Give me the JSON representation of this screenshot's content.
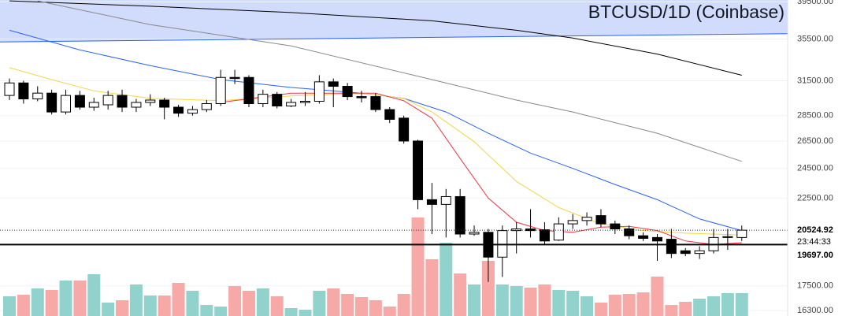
{
  "chart_data": {
    "type": "candlestick",
    "title": "BTCUSD/1D (Coinbase)",
    "log_scale": true,
    "grid": true,
    "ylim": [
      16050,
      39700
    ],
    "yticks": [
      {
        "value": 39500,
        "label": "39500.00"
      },
      {
        "value": 35500,
        "label": "35500.00"
      },
      {
        "value": 31500,
        "label": "31500.00"
      },
      {
        "value": 28500,
        "label": "28500.00"
      },
      {
        "value": 26500,
        "label": "26500.00"
      },
      {
        "value": 24500,
        "label": "24500.00"
      },
      {
        "value": 22500,
        "label": "22500.00"
      },
      {
        "value": 17500,
        "label": "17500.00"
      },
      {
        "value": 16300,
        "label": "16300.00"
      }
    ],
    "up_color": "#ffffff",
    "down_color": "#000000",
    "volume_up_color": "#92d2cc",
    "volume_down_color": "#f7a9a7",
    "open": [
      30200,
      31300,
      29900,
      30400,
      28800,
      30200,
      29200,
      29400,
      30200,
      29200,
      29600,
      29800,
      29200,
      28700,
      29000,
      29500,
      31800,
      31800,
      29500,
      30300,
      29300,
      29600,
      29700,
      31400,
      31000,
      30100,
      30100,
      29000,
      28300,
      26500,
      22400,
      22100,
      22600,
      20300,
      20400,
      19000,
      20500,
      20600,
      20550,
      19950,
      20900,
      21100,
      21400,
      20900,
      20600,
      20200,
      20100,
      20000,
      19350,
      19200,
      19350,
      20100,
      20100
    ],
    "high": [
      31700,
      31500,
      31000,
      30700,
      30700,
      30600,
      30000,
      30600,
      30700,
      29900,
      30300,
      30000,
      29400,
      29300,
      29800,
      32500,
      32500,
      32000,
      30700,
      30500,
      29900,
      30500,
      32000,
      31700,
      31300,
      30600,
      30400,
      29200,
      28500,
      26600,
      23500,
      23100,
      23100,
      20800,
      20600,
      20800,
      21000,
      21800,
      21000,
      21300,
      21500,
      21600,
      21800,
      21100,
      20800,
      20400,
      20300,
      20600,
      19500,
      19600,
      20600,
      20600,
      20800
    ],
    "low": [
      29800,
      29500,
      29700,
      28600,
      28600,
      29000,
      28900,
      29000,
      28800,
      28800,
      29300,
      28200,
      28400,
      28500,
      28800,
      29300,
      31200,
      29200,
      29200,
      29100,
      29200,
      29300,
      29500,
      29200,
      29800,
      29600,
      28800,
      27900,
      26300,
      21800,
      20300,
      20100,
      20100,
      20200,
      17700,
      17950,
      19200,
      20100,
      19700,
      19900,
      20600,
      20800,
      20700,
      20300,
      20000,
      19900,
      18800,
      18950,
      19050,
      18900,
      19200,
      19400,
      19900
    ],
    "close": [
      31300,
      29900,
      30400,
      28800,
      30200,
      29200,
      29600,
      30200,
      29200,
      29600,
      29800,
      29200,
      28700,
      29000,
      29500,
      31800,
      31700,
      29500,
      30300,
      29300,
      29600,
      29700,
      31400,
      31000,
      30100,
      30000,
      29000,
      28200,
      26500,
      22400,
      22100,
      22600,
      20300,
      20400,
      19000,
      20500,
      20600,
      20500,
      19900,
      20900,
      21100,
      21300,
      20900,
      20600,
      20200,
      20050,
      19900,
      19200,
      19200,
      19350,
      20100,
      20150,
      20524.92
    ],
    "volume": [
      25,
      27,
      35,
      33,
      45,
      45,
      53,
      17,
      20,
      40,
      26,
      26,
      42,
      32,
      14,
      12,
      38,
      32,
      35,
      25,
      10,
      8,
      32,
      35,
      28,
      24,
      20,
      12,
      28,
      125,
      72,
      93,
      54,
      40,
      70,
      40,
      38,
      36,
      40,
      33,
      32,
      25,
      17,
      27,
      28,
      30,
      50,
      14,
      18,
      22,
      25,
      29,
      29
    ],
    "moving_averages": [
      {
        "color": "#000000",
        "x": [
          0,
          10,
          20,
          30,
          36,
          40,
          46,
          52
        ],
        "values": [
          39600,
          39000,
          38300,
          37400,
          36400,
          35600,
          34000,
          32000
        ]
      },
      {
        "color": "#888888",
        "x": [
          2,
          10,
          20,
          30,
          36,
          40,
          46,
          52
        ],
        "values": [
          39600,
          37000,
          34800,
          31600,
          29800,
          28800,
          27100,
          25000
        ]
      },
      {
        "color": "#2962ff",
        "x": [
          0,
          5,
          10,
          15,
          20,
          25,
          28,
          31,
          34,
          37,
          40,
          43,
          46,
          49,
          52
        ],
        "values": [
          36400,
          34400,
          32900,
          31600,
          30900,
          30400,
          29950,
          28800,
          27100,
          25600,
          24500,
          23400,
          22400,
          21200,
          20500
        ]
      },
      {
        "color": "#f5d547",
        "x": [
          0,
          3,
          6,
          10,
          15,
          20,
          25,
          28,
          30,
          33,
          36,
          39,
          42,
          45,
          48,
          52
        ],
        "values": [
          32700,
          31600,
          30600,
          29950,
          29750,
          30150,
          30400,
          29950,
          28800,
          26450,
          23600,
          21900,
          20900,
          20500,
          20350,
          20250
        ]
      },
      {
        "color": "#f23645",
        "x": [
          15,
          20,
          26,
          28,
          30,
          32,
          34,
          36,
          38,
          40,
          42,
          44,
          46,
          48,
          50,
          52
        ],
        "values": [
          29600,
          30400,
          30400,
          29750,
          28300,
          25200,
          22500,
          21000,
          20500,
          20400,
          20700,
          20750,
          20500,
          19900,
          19700,
          19800
        ]
      }
    ],
    "trendline": {
      "color": "#2962ff",
      "fill": "#d1dbfb",
      "values": [
        35200,
        36050
      ]
    },
    "last_price": 20524.92,
    "countdown": "23:44:33",
    "level": {
      "value": 19697,
      "label": "19697.00"
    }
  }
}
